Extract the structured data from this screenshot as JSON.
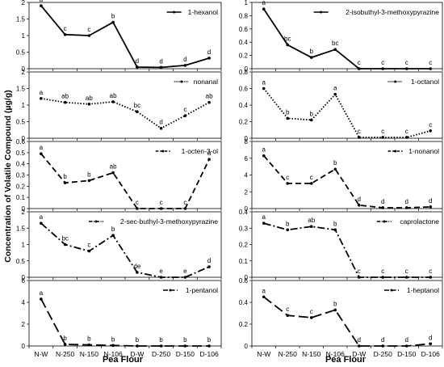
{
  "figure": {
    "ylabel": "Concentration of Volatile Compound (µg/g)",
    "left_xlabel": "Pea Flour",
    "right_xlabel": "Pea Flour"
  },
  "chart_data": [
    {
      "type": "line",
      "series": [
        {
          "name": "1-hexanol",
          "line_style": "solid",
          "values": [
            1.9,
            1.03,
            1.0,
            1.4,
            0.05,
            0.04,
            0.1,
            0.32
          ],
          "letters": [
            "a",
            "c",
            "c",
            "b",
            "d",
            "d",
            "d",
            "d"
          ]
        }
      ],
      "categories": [
        "N-W",
        "N-250",
        "N-150",
        "N-106",
        "D-W",
        "D-250",
        "D-150",
        "D-106"
      ],
      "ylim": [
        0,
        2
      ],
      "yticks": [
        "0",
        "0.5",
        "1",
        "1.5",
        "2"
      ],
      "tick_values": [
        0,
        0.5,
        1,
        1.5,
        2
      ],
      "xlabel": "",
      "ylabel": "",
      "title": ""
    },
    {
      "type": "line",
      "series": [
        {
          "name": "2-isobuthyl-3-methoxypyrazine",
          "line_style": "solid",
          "values": [
            0.9,
            0.36,
            0.17,
            0.29,
            0.0,
            0.0,
            0.0,
            0.0
          ],
          "letters": [
            "a",
            "bc",
            "b",
            "bc",
            "c",
            "c",
            "c",
            "c"
          ]
        }
      ],
      "categories": [
        "N-W",
        "N-250",
        "N-150",
        "N-106",
        "D-W",
        "D-250",
        "D-150",
        "D-106"
      ],
      "ylim": [
        0,
        1
      ],
      "yticks": [
        "0",
        "0.2",
        "0.4",
        "0.6",
        "0.8",
        "1"
      ],
      "tick_values": [
        0,
        0.2,
        0.4,
        0.6,
        0.8,
        1
      ],
      "xlabel": "",
      "ylabel": "",
      "title": ""
    },
    {
      "type": "line",
      "series": [
        {
          "name": "nonanal",
          "line_style": "dotted",
          "values": [
            1.2,
            1.08,
            1.03,
            1.1,
            0.8,
            0.3,
            0.68,
            1.08
          ],
          "letters": [
            "a",
            "ab",
            "ab",
            "ab",
            "bc",
            "d",
            "c",
            "ab"
          ]
        }
      ],
      "categories": [
        "N-W",
        "N-250",
        "N-150",
        "N-106",
        "D-W",
        "D-250",
        "D-150",
        "D-106"
      ],
      "ylim": [
        0,
        2
      ],
      "yticks": [
        "0",
        "0.5",
        "1",
        "1.5",
        "2"
      ],
      "tick_values": [
        0,
        0.5,
        1,
        1.5,
        2
      ],
      "xlabel": "",
      "ylabel": "",
      "title": ""
    },
    {
      "type": "line",
      "series": [
        {
          "name": "1-octanol",
          "line_style": "dotted",
          "values": [
            0.6,
            0.24,
            0.22,
            0.53,
            0.01,
            0.01,
            0.01,
            0.09
          ],
          "letters": [
            "a",
            "b",
            "b",
            "a",
            "c",
            "c",
            "c",
            "c"
          ]
        }
      ],
      "categories": [
        "N-W",
        "N-250",
        "N-150",
        "N-106",
        "D-W",
        "D-250",
        "D-150",
        "D-106"
      ],
      "ylim": [
        0,
        0.8
      ],
      "yticks": [
        "0",
        "0.2",
        "0.4",
        "0.6",
        "0.8"
      ],
      "tick_values": [
        0,
        0.2,
        0.4,
        0.6,
        0.8
      ],
      "xlabel": "",
      "ylabel": "",
      "title": ""
    },
    {
      "type": "line",
      "series": [
        {
          "name": "1-octen-3-ol",
          "line_style": "dashed",
          "values": [
            0.49,
            0.23,
            0.25,
            0.32,
            0.0,
            0.0,
            0.0,
            0.44
          ],
          "letters": [
            "a",
            "b",
            "b",
            "ab",
            "c",
            "c",
            "c",
            "a"
          ]
        }
      ],
      "categories": [
        "N-W",
        "N-250",
        "N-150",
        "N-106",
        "D-W",
        "D-250",
        "D-150",
        "D-106"
      ],
      "ylim": [
        0,
        0.6
      ],
      "yticks": [
        "0",
        "0.1",
        "0.2",
        "0.3",
        "0.4",
        "0.5",
        "0.6"
      ],
      "tick_values": [
        0,
        0.1,
        0.2,
        0.3,
        0.4,
        0.5,
        0.6
      ],
      "xlabel": "",
      "ylabel": "",
      "title": ""
    },
    {
      "type": "line",
      "series": [
        {
          "name": "1-nonanol",
          "line_style": "dashed",
          "values": [
            6.3,
            3.0,
            3.0,
            4.7,
            0.4,
            0.1,
            0.1,
            0.2
          ],
          "letters": [
            "a",
            "c",
            "c",
            "b",
            "d",
            "d",
            "d",
            "d"
          ]
        }
      ],
      "categories": [
        "N-W",
        "N-250",
        "N-150",
        "N-106",
        "D-W",
        "D-250",
        "D-150",
        "D-106"
      ],
      "ylim": [
        0,
        8
      ],
      "yticks": [
        "0",
        "2",
        "4",
        "6",
        "8"
      ],
      "tick_values": [
        0,
        2,
        4,
        6,
        8
      ],
      "xlabel": "",
      "ylabel": "",
      "title": ""
    },
    {
      "type": "line",
      "series": [
        {
          "name": "2-sec-buthyl-3-methoxypyrazine",
          "line_style": "dashdot",
          "values": [
            1.65,
            1.0,
            0.8,
            1.28,
            0.15,
            0.0,
            0.0,
            0.32
          ],
          "letters": [
            "a",
            "bc",
            "c",
            "b",
            "de",
            "e",
            "e",
            "d"
          ]
        }
      ],
      "categories": [
        "N-W",
        "N-250",
        "N-150",
        "N-106",
        "D-W",
        "D-250",
        "D-150",
        "D-106"
      ],
      "ylim": [
        0,
        2
      ],
      "yticks": [
        "0",
        "0.5",
        "1",
        "1.5",
        "2"
      ],
      "tick_values": [
        0,
        0.5,
        1,
        1.5,
        2
      ],
      "xlabel": "",
      "ylabel": "",
      "title": ""
    },
    {
      "type": "line",
      "series": [
        {
          "name": "caprolactone",
          "line_style": "dashdot",
          "values": [
            0.33,
            0.29,
            0.31,
            0.29,
            0.0,
            0.0,
            0.0,
            0.0
          ],
          "letters": [
            "a",
            "b",
            "ab",
            "b",
            "c",
            "c",
            "c",
            "c"
          ]
        }
      ],
      "categories": [
        "N-W",
        "N-250",
        "N-150",
        "N-106",
        "D-W",
        "D-250",
        "D-150",
        "D-106"
      ],
      "ylim": [
        0,
        0.4
      ],
      "yticks": [
        "0",
        "0.1",
        "0.2",
        "0.3",
        "0.4"
      ],
      "tick_values": [
        0,
        0.1,
        0.2,
        0.3,
        0.4
      ],
      "xlabel": "",
      "ylabel": "",
      "title": ""
    },
    {
      "type": "line",
      "series": [
        {
          "name": "1-pentanol",
          "line_style": "longdash",
          "values": [
            4.3,
            0.15,
            0.1,
            0.05,
            0.0,
            0.0,
            0.0,
            0.0
          ],
          "letters": [
            "a",
            "b",
            "b",
            "b",
            "b",
            "b",
            "b",
            "b"
          ]
        }
      ],
      "categories": [
        "N-W",
        "N-250",
        "N-150",
        "N-106",
        "D-W",
        "D-250",
        "D-150",
        "D-106"
      ],
      "ylim": [
        0,
        6
      ],
      "yticks": [
        "0",
        "2",
        "4",
        "6"
      ],
      "tick_values": [
        0,
        2,
        4,
        6
      ],
      "xlabel": "",
      "ylabel": "",
      "title": ""
    },
    {
      "type": "line",
      "series": [
        {
          "name": "1-heptanol",
          "line_style": "longdash",
          "values": [
            0.45,
            0.28,
            0.26,
            0.33,
            0.0,
            0.0,
            0.0,
            0.02
          ],
          "letters": [
            "a",
            "c",
            "c",
            "b",
            "d",
            "d",
            "d",
            "d"
          ]
        }
      ],
      "categories": [
        "N-W",
        "N-250",
        "N-150",
        "N-106",
        "D-W",
        "D-250",
        "D-150",
        "D-106"
      ],
      "ylim": [
        0,
        0.6
      ],
      "yticks": [
        "0",
        "0.2",
        "0.4",
        "0.6"
      ],
      "tick_values": [
        0,
        0.2,
        0.4,
        0.6
      ],
      "xlabel": "",
      "ylabel": "",
      "title": ""
    }
  ]
}
